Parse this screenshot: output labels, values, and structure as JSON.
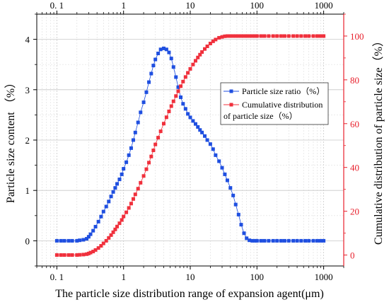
{
  "chart_data": {
    "type": "scatter",
    "xlabel": "The particle size distribution range of expansion agent(μm)",
    "ylabel_left": "Particle size content （%）",
    "ylabel_right": "Cumulative distribution of particle size（%）",
    "x_scale": "log",
    "xlim": [
      0.05,
      2000
    ],
    "ylim_left": [
      -0.5,
      4.5
    ],
    "ylim_right": [
      -5,
      110
    ],
    "x_ticks": [
      0.1,
      1,
      10,
      100,
      1000
    ],
    "x_tick_labels_bottom": [
      "0. 1",
      "1",
      "10",
      "100",
      "1000"
    ],
    "x_tick_labels_top": [
      "0. 1",
      "1",
      "10",
      "100",
      "1000"
    ],
    "y_ticks_left": [
      0,
      1,
      2,
      3,
      4
    ],
    "y_ticks_right": [
      0,
      20,
      40,
      60,
      80,
      100
    ],
    "grid": true,
    "legend_placement": "center-right",
    "series": [
      {
        "name": "Particle size ratio（%）",
        "axis": "left",
        "color": "#1f4fe0",
        "marker": "square",
        "x": [
          0.1,
          0.115,
          0.13,
          0.15,
          0.17,
          0.2,
          0.22,
          0.25,
          0.28,
          0.3,
          0.32,
          0.35,
          0.38,
          0.42,
          0.46,
          0.5,
          0.55,
          0.6,
          0.65,
          0.7,
          0.75,
          0.8,
          0.87,
          0.94,
          1.0,
          1.1,
          1.2,
          1.3,
          1.4,
          1.5,
          1.65,
          1.8,
          2.0,
          2.2,
          2.4,
          2.6,
          2.8,
          3.0,
          3.3,
          3.6,
          4.0,
          4.4,
          4.8,
          5.2,
          5.6,
          6.1,
          6.6,
          7.2,
          7.8,
          8.5,
          9.2,
          10,
          11,
          12,
          13,
          14,
          15,
          16.5,
          18,
          20,
          22,
          24,
          27,
          30,
          33,
          36,
          40,
          44,
          48,
          53,
          58,
          64,
          70,
          77,
          85,
          93,
          100,
          115,
          130,
          150,
          175,
          200,
          230,
          260,
          300,
          350,
          400,
          460,
          530,
          600,
          700,
          800,
          900,
          1000
        ],
        "values": [
          0,
          0,
          0,
          0,
          0,
          0,
          0.01,
          0.02,
          0.04,
          0.08,
          0.13,
          0.2,
          0.28,
          0.38,
          0.48,
          0.58,
          0.68,
          0.78,
          0.88,
          0.97,
          1.05,
          1.13,
          1.22,
          1.32,
          1.43,
          1.56,
          1.7,
          1.84,
          2.0,
          2.15,
          2.35,
          2.55,
          2.75,
          2.95,
          3.15,
          3.32,
          3.48,
          3.6,
          3.72,
          3.8,
          3.82,
          3.8,
          3.74,
          3.62,
          3.45,
          3.25,
          3.05,
          2.85,
          2.72,
          2.62,
          2.52,
          2.45,
          2.38,
          2.32,
          2.26,
          2.2,
          2.15,
          2.08,
          2.0,
          1.92,
          1.82,
          1.7,
          1.58,
          1.45,
          1.32,
          1.2,
          1.05,
          0.9,
          0.72,
          0.52,
          0.32,
          0.15,
          0.05,
          0.01,
          0,
          0,
          0,
          0,
          0,
          0,
          0,
          0,
          0,
          0,
          0,
          0,
          0,
          0,
          0,
          0,
          0,
          0,
          0,
          0
        ]
      },
      {
        "name": "Cumulative distribution of particle size（%）",
        "axis": "right",
        "color": "#f0303c",
        "marker": "square",
        "x": [
          0.1,
          0.115,
          0.13,
          0.15,
          0.17,
          0.2,
          0.22,
          0.25,
          0.28,
          0.3,
          0.32,
          0.35,
          0.38,
          0.42,
          0.46,
          0.5,
          0.55,
          0.6,
          0.65,
          0.7,
          0.75,
          0.8,
          0.87,
          0.94,
          1.0,
          1.1,
          1.2,
          1.3,
          1.4,
          1.5,
          1.65,
          1.8,
          2.0,
          2.2,
          2.4,
          2.6,
          2.8,
          3.0,
          3.3,
          3.6,
          4.0,
          4.4,
          4.8,
          5.2,
          5.6,
          6.1,
          6.6,
          7.2,
          7.8,
          8.5,
          9.2,
          10,
          11,
          12,
          13,
          14,
          15,
          16.5,
          18,
          20,
          22,
          24,
          27,
          30,
          33,
          36,
          40,
          44,
          48,
          53,
          58,
          64,
          70,
          77,
          85,
          93,
          100,
          115,
          130,
          150,
          175,
          200,
          230,
          260,
          300,
          350,
          400,
          460,
          530,
          600,
          700,
          800,
          900,
          1000
        ],
        "values": [
          0,
          0,
          0,
          0,
          0,
          0,
          0.1,
          0.2,
          0.4,
          0.7,
          1.1,
          1.6,
          2.3,
          3.2,
          4.2,
          5.3,
          6.5,
          7.8,
          9.1,
          10.4,
          11.7,
          13.0,
          14.5,
          16.0,
          17.6,
          19.5,
          21.5,
          23.5,
          25.6,
          27.7,
          30.3,
          33.0,
          36.1,
          39.2,
          42.2,
          45.0,
          47.8,
          50.5,
          53.6,
          56.5,
          60.0,
          62.9,
          65.6,
          68.0,
          70.2,
          72.6,
          74.8,
          77.1,
          79.2,
          81.3,
          83.2,
          85.0,
          87.0,
          88.7,
          90.2,
          91.5,
          92.7,
          94.1,
          95.3,
          96.6,
          97.6,
          98.4,
          99.2,
          99.6,
          99.9,
          100,
          100,
          100,
          100,
          100,
          100,
          100,
          100,
          100,
          100,
          100,
          100,
          100,
          100,
          100,
          100,
          100,
          100,
          100,
          100,
          100,
          100,
          100,
          100,
          100,
          100,
          100,
          100,
          100
        ]
      }
    ]
  }
}
